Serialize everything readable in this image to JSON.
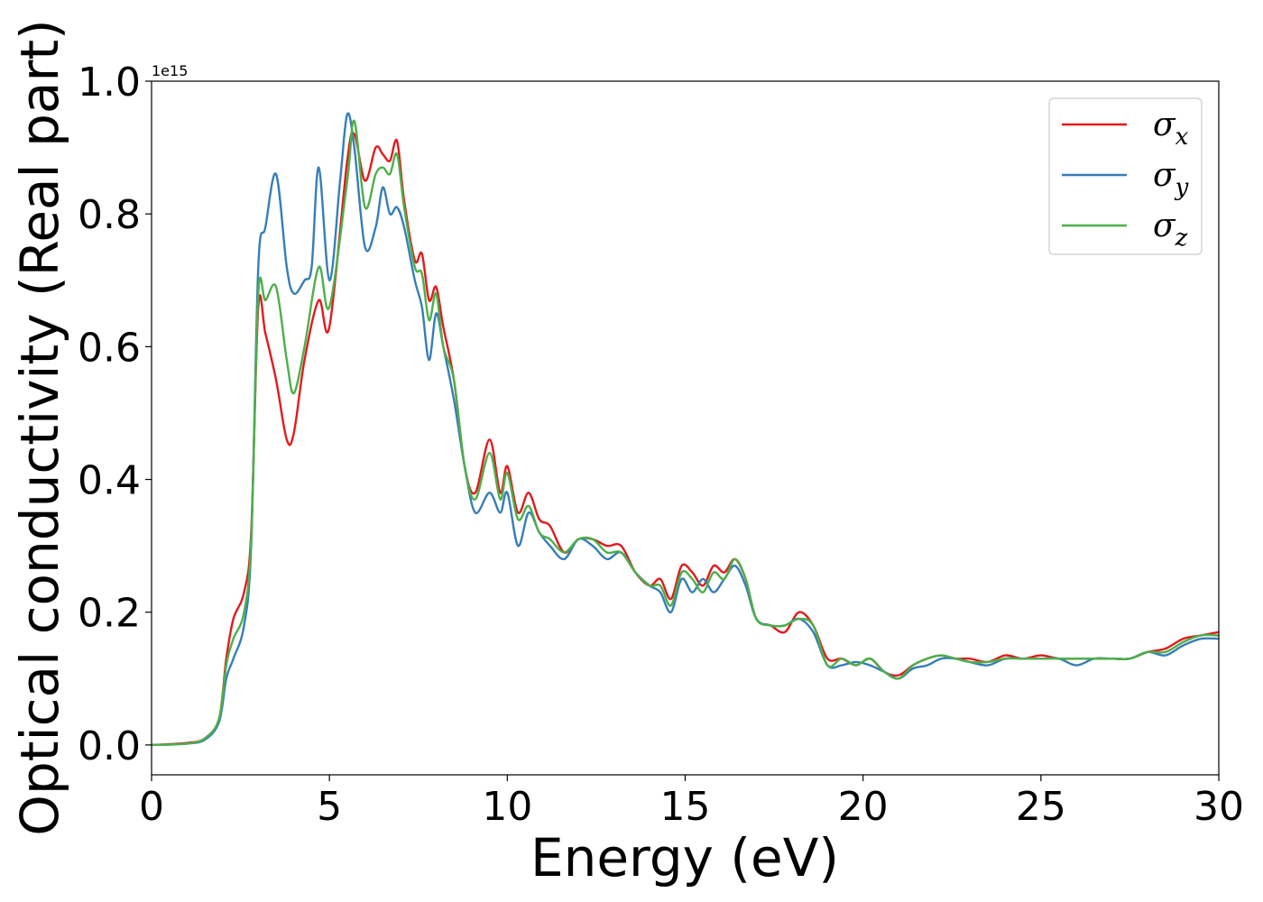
{
  "chart_data": {
    "type": "line",
    "xlabel": "Energy (eV)",
    "ylabel": "Optical conductivity (Real part)",
    "y_offset_label": "1e15",
    "xlim": [
      0,
      30
    ],
    "ylim": [
      -0.045,
      1.0
    ],
    "xticks": [
      0,
      5,
      10,
      15,
      20,
      25,
      30
    ],
    "xtick_labels": [
      "0",
      "5",
      "10",
      "15",
      "20",
      "25",
      "30"
    ],
    "yticks": [
      0.0,
      0.2,
      0.4,
      0.6,
      0.8,
      1.0
    ],
    "ytick_labels": [
      "0.0",
      "0.2",
      "0.4",
      "0.6",
      "0.8",
      "1.0"
    ],
    "grid": false,
    "legend_position": "top-right",
    "series": [
      {
        "name": "σx",
        "symbol": "σ",
        "subscript": "x",
        "color": "#e31a1c",
        "x": [
          0,
          1,
          1.5,
          1.9,
          2.1,
          2.3,
          2.6,
          2.8,
          3.0,
          3.2,
          3.5,
          3.8,
          4.0,
          4.3,
          4.7,
          5.0,
          5.5,
          5.7,
          6.0,
          6.3,
          6.5,
          6.7,
          6.9,
          7.1,
          7.4,
          7.6,
          7.8,
          8.0,
          8.2,
          8.5,
          8.8,
          9.1,
          9.5,
          9.8,
          10.0,
          10.3,
          10.6,
          10.9,
          11.2,
          11.6,
          12.0,
          12.4,
          12.8,
          13.2,
          13.6,
          14.0,
          14.3,
          14.6,
          14.9,
          15.2,
          15.5,
          15.8,
          16.1,
          16.4,
          16.7,
          17.0,
          17.4,
          17.8,
          18.2,
          18.6,
          19.0,
          19.4,
          19.8,
          20.2,
          20.6,
          21.0,
          21.4,
          21.8,
          22.2,
          22.6,
          23.0,
          23.5,
          24.0,
          24.5,
          25.0,
          25.5,
          26.0,
          26.5,
          27.0,
          27.5,
          28.0,
          28.5,
          29.0,
          29.5,
          30.0
        ],
        "y": [
          0.0,
          0.003,
          0.01,
          0.04,
          0.13,
          0.19,
          0.23,
          0.32,
          0.66,
          0.62,
          0.55,
          0.46,
          0.47,
          0.58,
          0.67,
          0.63,
          0.88,
          0.92,
          0.85,
          0.9,
          0.89,
          0.88,
          0.91,
          0.82,
          0.73,
          0.74,
          0.67,
          0.69,
          0.63,
          0.55,
          0.42,
          0.38,
          0.46,
          0.38,
          0.42,
          0.35,
          0.38,
          0.34,
          0.33,
          0.29,
          0.31,
          0.31,
          0.3,
          0.3,
          0.26,
          0.24,
          0.25,
          0.22,
          0.27,
          0.26,
          0.24,
          0.27,
          0.26,
          0.28,
          0.25,
          0.19,
          0.18,
          0.17,
          0.2,
          0.18,
          0.13,
          0.13,
          0.12,
          0.13,
          0.11,
          0.105,
          0.12,
          0.13,
          0.135,
          0.13,
          0.13,
          0.125,
          0.135,
          0.13,
          0.135,
          0.13,
          0.13,
          0.13,
          0.13,
          0.13,
          0.14,
          0.145,
          0.16,
          0.165,
          0.17
        ]
      },
      {
        "name": "σy",
        "symbol": "σ",
        "subscript": "y",
        "color": "#377eb8",
        "x": [
          0,
          1,
          1.5,
          1.9,
          2.1,
          2.3,
          2.6,
          2.8,
          3.0,
          3.2,
          3.5,
          3.8,
          4.0,
          4.3,
          4.5,
          4.7,
          5.0,
          5.3,
          5.5,
          5.7,
          6.0,
          6.3,
          6.5,
          6.7,
          6.9,
          7.1,
          7.4,
          7.6,
          7.8,
          8.0,
          8.2,
          8.5,
          8.8,
          9.1,
          9.5,
          9.8,
          10.0,
          10.3,
          10.6,
          10.9,
          11.2,
          11.6,
          12.0,
          12.4,
          12.8,
          13.2,
          13.6,
          14.0,
          14.3,
          14.6,
          14.9,
          15.2,
          15.5,
          15.8,
          16.1,
          16.4,
          16.7,
          17.0,
          17.4,
          17.8,
          18.2,
          18.6,
          19.0,
          19.4,
          19.8,
          20.2,
          20.6,
          21.0,
          21.4,
          21.8,
          22.2,
          22.6,
          23.0,
          23.5,
          24.0,
          24.5,
          25.0,
          25.5,
          26.0,
          26.5,
          27.0,
          27.5,
          28.0,
          28.5,
          29.0,
          29.5,
          30.0
        ],
        "y": [
          0.0,
          0.002,
          0.008,
          0.035,
          0.1,
          0.13,
          0.18,
          0.3,
          0.72,
          0.78,
          0.86,
          0.72,
          0.68,
          0.7,
          0.72,
          0.87,
          0.7,
          0.85,
          0.95,
          0.9,
          0.75,
          0.78,
          0.84,
          0.8,
          0.81,
          0.78,
          0.7,
          0.66,
          0.58,
          0.65,
          0.6,
          0.52,
          0.42,
          0.35,
          0.38,
          0.35,
          0.38,
          0.3,
          0.35,
          0.32,
          0.3,
          0.28,
          0.31,
          0.3,
          0.28,
          0.29,
          0.26,
          0.24,
          0.23,
          0.2,
          0.25,
          0.23,
          0.25,
          0.23,
          0.25,
          0.27,
          0.24,
          0.19,
          0.18,
          0.18,
          0.19,
          0.17,
          0.12,
          0.12,
          0.125,
          0.12,
          0.11,
          0.1,
          0.115,
          0.12,
          0.13,
          0.13,
          0.125,
          0.12,
          0.13,
          0.13,
          0.13,
          0.13,
          0.12,
          0.13,
          0.13,
          0.13,
          0.14,
          0.135,
          0.15,
          0.16,
          0.16
        ]
      },
      {
        "name": "σz",
        "symbol": "σ",
        "subscript": "z",
        "color": "#4daf4a",
        "x": [
          0,
          1,
          1.5,
          1.9,
          2.1,
          2.3,
          2.6,
          2.8,
          3.0,
          3.2,
          3.5,
          3.8,
          4.0,
          4.3,
          4.7,
          5.0,
          5.5,
          5.7,
          6.0,
          6.3,
          6.5,
          6.7,
          6.9,
          7.1,
          7.4,
          7.6,
          7.8,
          8.0,
          8.2,
          8.5,
          8.8,
          9.1,
          9.5,
          9.8,
          10.0,
          10.3,
          10.6,
          10.9,
          11.2,
          11.6,
          12.0,
          12.4,
          12.8,
          13.2,
          13.6,
          14.0,
          14.3,
          14.6,
          14.9,
          15.2,
          15.5,
          15.8,
          16.1,
          16.4,
          16.7,
          17.0,
          17.4,
          17.8,
          18.2,
          18.6,
          19.0,
          19.4,
          19.8,
          20.2,
          20.6,
          21.0,
          21.4,
          21.8,
          22.2,
          22.6,
          23.0,
          23.5,
          24.0,
          24.5,
          25.0,
          25.5,
          26.0,
          26.5,
          27.0,
          27.5,
          28.0,
          28.5,
          29.0,
          29.5,
          30.0
        ],
        "y": [
          0.0,
          0.002,
          0.01,
          0.04,
          0.12,
          0.16,
          0.2,
          0.31,
          0.68,
          0.67,
          0.69,
          0.58,
          0.53,
          0.6,
          0.72,
          0.66,
          0.85,
          0.94,
          0.81,
          0.86,
          0.87,
          0.86,
          0.89,
          0.81,
          0.72,
          0.71,
          0.64,
          0.68,
          0.6,
          0.55,
          0.42,
          0.37,
          0.44,
          0.37,
          0.41,
          0.34,
          0.36,
          0.32,
          0.31,
          0.29,
          0.31,
          0.31,
          0.29,
          0.29,
          0.26,
          0.24,
          0.24,
          0.21,
          0.26,
          0.25,
          0.23,
          0.26,
          0.25,
          0.28,
          0.25,
          0.19,
          0.18,
          0.18,
          0.19,
          0.18,
          0.12,
          0.13,
          0.12,
          0.13,
          0.11,
          0.1,
          0.12,
          0.13,
          0.135,
          0.13,
          0.125,
          0.125,
          0.13,
          0.13,
          0.13,
          0.13,
          0.13,
          0.13,
          0.13,
          0.13,
          0.14,
          0.14,
          0.155,
          0.165,
          0.165
        ]
      }
    ]
  }
}
